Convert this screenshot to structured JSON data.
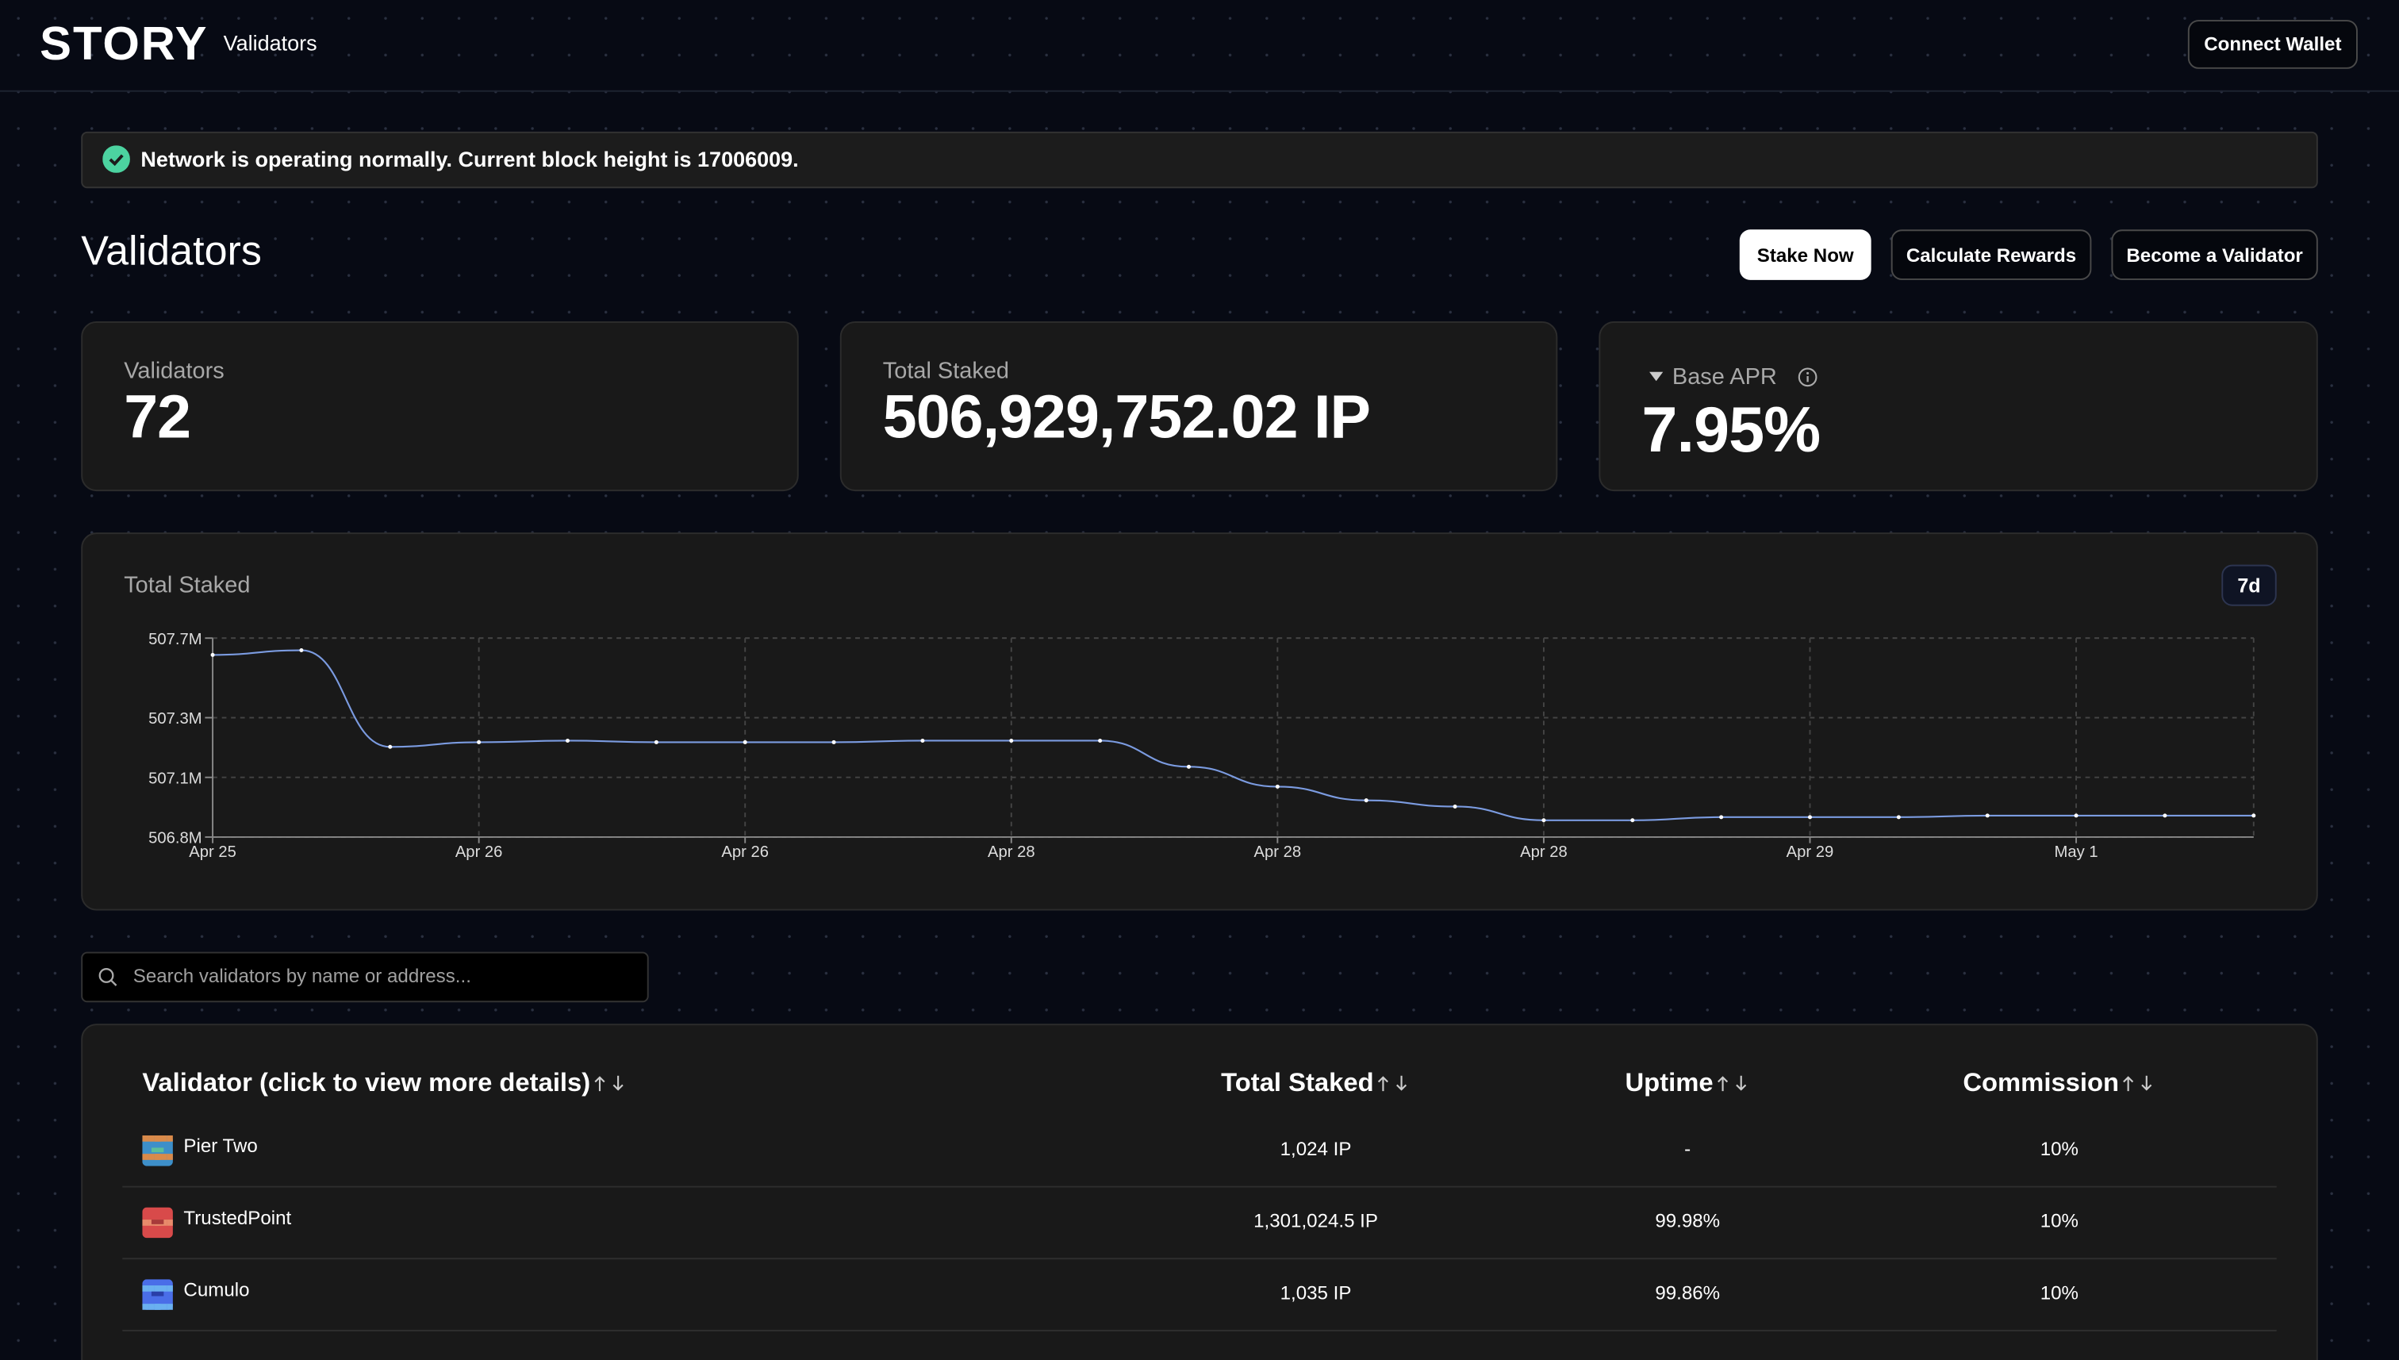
{
  "header": {
    "logo": "STORY",
    "nav": "Validators",
    "connect": "Connect Wallet"
  },
  "banner": "Network is operating normally. Current block height is 17006009.",
  "page_title": "Validators",
  "actions": [
    "Stake Now",
    "Calculate Rewards",
    "Become a Validator"
  ],
  "stats": [
    {
      "label": "Validators",
      "value": "72"
    },
    {
      "label": "Total Staked",
      "value": "506,929,752.02 IP"
    },
    {
      "label": "Base APR",
      "value": "7.95%"
    }
  ],
  "chart_data": {
    "type": "line",
    "title": "Total Staked",
    "range_button": "7d",
    "categories": [
      "Apr 25",
      null,
      null,
      "Apr 26",
      null,
      null,
      "Apr 26",
      null,
      null,
      "Apr 28",
      null,
      null,
      "Apr 28",
      null,
      null,
      "Apr 28",
      null,
      null,
      "Apr 29",
      null,
      null,
      "May 1",
      null,
      null
    ],
    "series": [
      {
        "color": "#7b9be0",
        "values": [
          507624000,
          507645000,
          507208000,
          507229000,
          507236000,
          507229000,
          507229000,
          507229000,
          507236000,
          507236000,
          507236000,
          507118000,
          507028000,
          506966000,
          506938000,
          506876000,
          506876000,
          506890000,
          506890000,
          506890000,
          506897000,
          506897000,
          506897000,
          506897000
        ]
      }
    ],
    "ylim": [
      506800000,
      507700000
    ],
    "yticks": [
      {
        "value": 506800000,
        "label": "506.8M"
      },
      {
        "value": 507070000,
        "label": "507.1M"
      },
      {
        "value": 507340000,
        "label": "507.3M"
      },
      {
        "value": 507700000,
        "label": "507.7M"
      }
    ],
    "grid": true
  },
  "search_placeholder": "Search validators by name or address...",
  "table": {
    "headers": [
      "Validator (click to view more details)",
      "Total Staked",
      "Uptime",
      "Commission"
    ],
    "rows": [
      [
        "Pier Two",
        "1,024 IP",
        "-",
        "10%"
      ],
      [
        "TrustedPoint",
        "1,301,024.5 IP",
        "99.98%",
        "10%"
      ],
      [
        "Cumulo",
        "1,035 IP",
        "99.86%",
        "10%"
      ]
    ]
  }
}
